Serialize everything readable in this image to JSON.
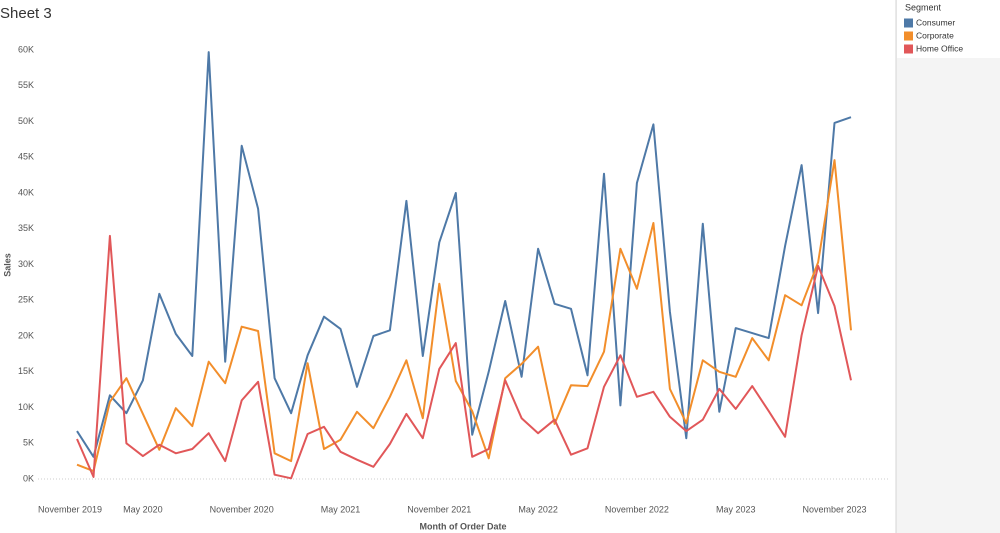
{
  "chart_data": {
    "type": "line",
    "title": "Sheet 3",
    "x_label": "Month of Order Date",
    "y_label": "Sales",
    "legend_title": "Segment",
    "legend": "right",
    "x": [
      "2020-01",
      "2020-02",
      "2020-03",
      "2020-04",
      "2020-05",
      "2020-06",
      "2020-07",
      "2020-08",
      "2020-09",
      "2020-10",
      "2020-11",
      "2020-12",
      "2021-01",
      "2021-02",
      "2021-03",
      "2021-04",
      "2021-05",
      "2021-06",
      "2021-07",
      "2021-08",
      "2021-09",
      "2021-10",
      "2021-11",
      "2021-12",
      "2022-01",
      "2022-02",
      "2022-03",
      "2022-04",
      "2022-05",
      "2022-06",
      "2022-07",
      "2022-08",
      "2022-09",
      "2022-10",
      "2022-11",
      "2022-12",
      "2023-01",
      "2023-02",
      "2023-03",
      "2023-04",
      "2023-05",
      "2023-06",
      "2023-07",
      "2023-08",
      "2023-09",
      "2023-10",
      "2023-11",
      "2023-12"
    ],
    "xlim": [
      "2019-11",
      "2023-12"
    ],
    "xticks": [
      {
        "value": "2019-11",
        "label": "November 2019"
      },
      {
        "value": "2020-05",
        "label": "May 2020"
      },
      {
        "value": "2020-11",
        "label": "November 2020"
      },
      {
        "value": "2021-05",
        "label": "May 2021"
      },
      {
        "value": "2021-11",
        "label": "November 2021"
      },
      {
        "value": "2022-05",
        "label": "May 2022"
      },
      {
        "value": "2022-11",
        "label": "November 2022"
      },
      {
        "value": "2023-05",
        "label": "May 2023"
      },
      {
        "value": "2023-11",
        "label": "November 2023"
      }
    ],
    "ylim": [
      0,
      60000
    ],
    "yticks": [
      {
        "value": 0,
        "label": "0K"
      },
      {
        "value": 5000,
        "label": "5K"
      },
      {
        "value": 10000,
        "label": "10K"
      },
      {
        "value": 15000,
        "label": "15K"
      },
      {
        "value": 20000,
        "label": "20K"
      },
      {
        "value": 25000,
        "label": "25K"
      },
      {
        "value": 30000,
        "label": "30K"
      },
      {
        "value": 35000,
        "label": "35K"
      },
      {
        "value": 40000,
        "label": "40K"
      },
      {
        "value": 45000,
        "label": "45K"
      },
      {
        "value": 50000,
        "label": "50K"
      },
      {
        "value": 55000,
        "label": "55K"
      },
      {
        "value": 60000,
        "label": "60K"
      }
    ],
    "series": [
      {
        "name": "Consumer",
        "color": "#4e79a7",
        "values": [
          6700,
          3100,
          11700,
          9200,
          13800,
          25900,
          20300,
          17200,
          59700,
          16400,
          46600,
          37800,
          14100,
          9200,
          17300,
          22700,
          21000,
          12900,
          20000,
          20800,
          38900,
          17200,
          33100,
          40000,
          6200,
          15000,
          24900,
          14300,
          32200,
          24500,
          23800,
          14500,
          42700,
          10300,
          41400,
          49600,
          23400,
          5700,
          35700,
          9400,
          21100,
          20400,
          19700,
          32600,
          43900,
          23200,
          49800,
          50600
        ]
      },
      {
        "name": "Corporate",
        "color": "#f28e2b",
        "values": [
          2000,
          1100,
          10800,
          14100,
          9100,
          4100,
          9900,
          7400,
          16400,
          13400,
          21300,
          20700,
          3600,
          2500,
          16200,
          4200,
          5500,
          9400,
          7100,
          11500,
          16600,
          8500,
          27300,
          13700,
          9500,
          2900,
          14100,
          16100,
          18500,
          7700,
          13100,
          13000,
          17800,
          32200,
          26600,
          35800,
          12600,
          7800,
          16600,
          15000,
          14300,
          19700,
          16600,
          25700,
          24300,
          30300,
          44600,
          20800
        ]
      },
      {
        "name": "Home Office",
        "color": "#e15759",
        "values": [
          5600,
          300,
          34000,
          5000,
          3200,
          4800,
          3600,
          4200,
          6400,
          2500,
          11000,
          13600,
          600,
          100,
          6300,
          7300,
          3800,
          2700,
          1700,
          4900,
          9100,
          5700,
          15400,
          19000,
          3100,
          4200,
          13800,
          8500,
          6400,
          8300,
          3400,
          4300,
          12900,
          17300,
          11500,
          12200,
          8700,
          6700,
          8300,
          12600,
          9800,
          13000,
          9500,
          5900,
          20100,
          29800,
          24200,
          13800
        ]
      }
    ]
  }
}
